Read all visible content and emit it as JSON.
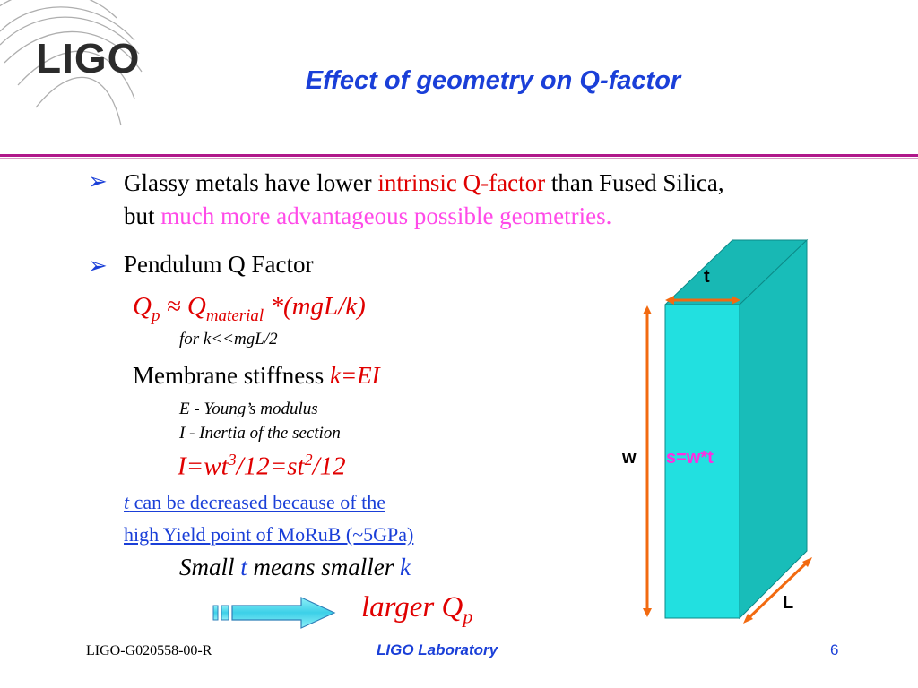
{
  "header": {
    "logo": "LIGO",
    "title": "Effect of geometry on Q-factor"
  },
  "bullets": [
    {
      "l1_a": "Glassy metals have lower ",
      "l1_b": "intrinsic",
      "l1_c": " Q-factor",
      "l1_d": " than Fused Silica,",
      "l2_a": "but ",
      "l2_b": "much more advantageous possible geometries."
    },
    {
      "text": "Pendulum Q Factor"
    }
  ],
  "formula1": {
    "q": "Q",
    "q_sub": "p",
    "approx": " ≈ Q",
    "mat_sub": "material",
    "rest": " *(mgL/k)"
  },
  "condition": "for k<<mgL/2",
  "membrane": {
    "label": "Membrane stiffness ",
    "value": "k=EI"
  },
  "defs": {
    "E": "E - Young’s modulus",
    "I": "I - Inertia of the section"
  },
  "formula2": {
    "a": "I=wt",
    "sup1": "3",
    "b": "/12=st",
    "sup2": "2",
    "c": "/12"
  },
  "notes": {
    "line1_t": "t",
    "line1_rest": " can be decreased because of the",
    "line2": "high Yield point of MoRuB (~5GPa)"
  },
  "small_line": {
    "a": "Small ",
    "t": "t",
    "b": " means smaller ",
    "k": "k"
  },
  "larger": {
    "text": "larger Q",
    "sub": "p"
  },
  "diagram": {
    "t": "t",
    "w": "w",
    "s": "s=w*t",
    "L": "L"
  },
  "footer": {
    "doc_id": "LIGO-G020558-00-R",
    "lab": "LIGO Laboratory",
    "page": "6"
  },
  "colors": {
    "title_blue": "#1a3fd8",
    "red": "#e00000",
    "magenta": "#ff4ae8",
    "rule": "#b0178a",
    "slab": "#1fd6d6",
    "arrow": "#f26a10"
  }
}
